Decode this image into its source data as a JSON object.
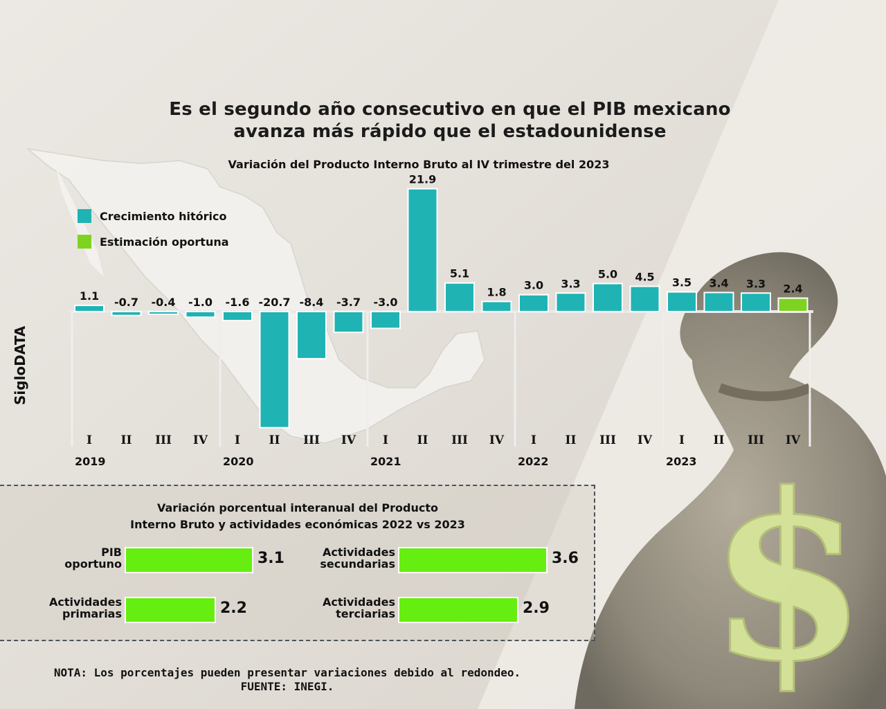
{
  "headline": {
    "line1": "Es el segundo año consecutivo en que el PIB mexicano",
    "line2": "avanza más rápido que el estadounidense"
  },
  "brand": "SigloDATA",
  "colors": {
    "historic": "#1fb3b4",
    "estimate": "#7ed321",
    "activity_bar": "#66ee11",
    "background": "#e6e2dc"
  },
  "icons": {
    "map": "mexico-map-icon",
    "money_bag": "money-bag-icon",
    "dollar": "dollar-sign-icon"
  },
  "chart_data": [
    {
      "type": "bar",
      "title": "Variación del Producto Interno Bruto al IV trimestre del 2023",
      "legend": [
        {
          "label": "Crecimiento hitórico",
          "color": "#1fb3b4"
        },
        {
          "label": "Estimación oportuna",
          "color": "#7ed321"
        }
      ],
      "legend_position": "top-left",
      "categories": [
        "I",
        "II",
        "III",
        "IV",
        "I",
        "II",
        "III",
        "IV",
        "I",
        "II",
        "III",
        "IV",
        "I",
        "II",
        "III",
        "IV",
        "I",
        "II",
        "III",
        "IV"
      ],
      "years": [
        "2019",
        "2020",
        "2021",
        "2022",
        "2023"
      ],
      "values": [
        1.1,
        -0.7,
        -0.4,
        -1.0,
        -1.6,
        -20.7,
        -8.4,
        -3.7,
        -3.0,
        21.9,
        5.1,
        1.8,
        3.0,
        3.3,
        5.0,
        4.5,
        3.5,
        3.4,
        3.3,
        2.4
      ],
      "labels": [
        "1.1",
        "-0.7",
        "-0.4",
        "-1.0",
        "-1.6",
        "-20.7",
        "-8.4",
        "-3.7",
        "-3.0",
        "21.9",
        "5.1",
        "1.8",
        "3.0",
        "3.3",
        "5.0",
        "4.5",
        "3.5",
        "3.4",
        "3.3",
        "2.4"
      ],
      "estimate_index": 19,
      "grid": false
    },
    {
      "type": "bar",
      "orientation": "horizontal",
      "title_line1": "Variación porcentual interanual del Producto",
      "title_line2": "Interno Bruto y actividades económicas 2022 vs 2023",
      "items": [
        {
          "label_line1": "PIB",
          "label_line2": "oportuno",
          "value": 3.1,
          "value_label": "3.1"
        },
        {
          "label_line1": "Actividades",
          "label_line2": "primarias",
          "value": 2.2,
          "value_label": "2.2"
        },
        {
          "label_line1": "Actividades",
          "label_line2": "secundarias",
          "value": 3.6,
          "value_label": "3.6"
        },
        {
          "label_line1": "Actividades",
          "label_line2": "terciarias",
          "value": 2.9,
          "value_label": "2.9"
        }
      ]
    }
  ],
  "note": {
    "line1": "NOTA: Los porcentajes pueden presentar variaciones debido al redondeo.",
    "line2": "FUENTE: INEGI."
  }
}
